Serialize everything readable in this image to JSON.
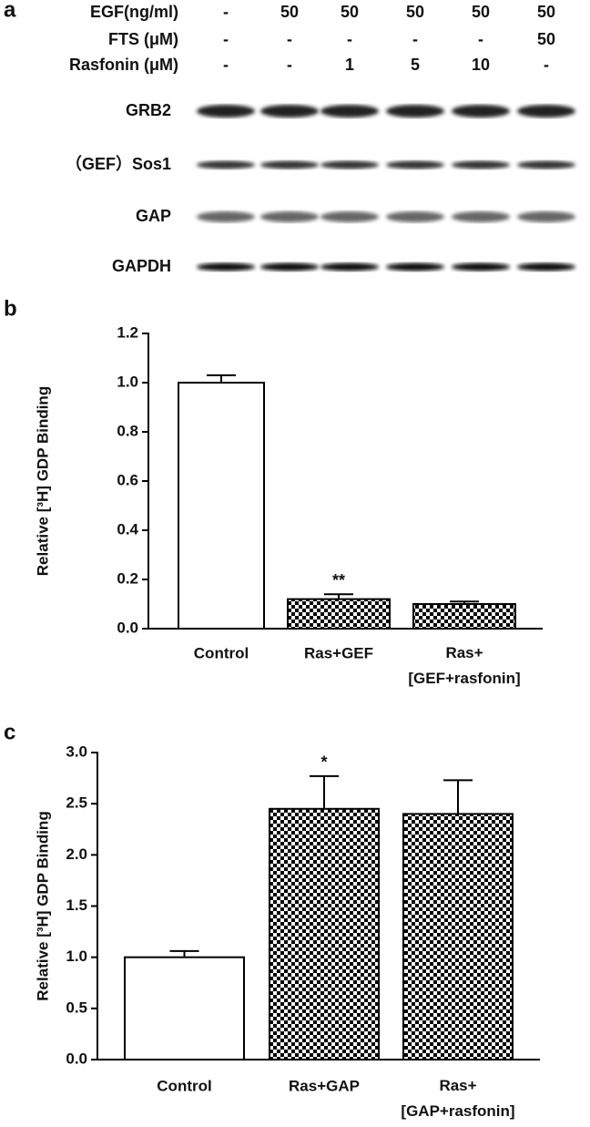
{
  "blot": {
    "panel_label": "a",
    "conditions": [
      {
        "label": "EGF(ng/ml)",
        "values": [
          "-",
          "50",
          "50",
          "50",
          "50",
          "50"
        ]
      },
      {
        "label": "FTS (μM)",
        "values": [
          "-",
          "-",
          "-",
          "-",
          "-",
          "50"
        ]
      },
      {
        "label": "Rasfonin (μM)",
        "values": [
          "-",
          "-",
          "1",
          "5",
          "10",
          "-"
        ]
      }
    ],
    "bands": [
      "GRB2",
      "（GEF）Sos1",
      "GAP",
      "GAPDH"
    ]
  },
  "chart_data": [
    {
      "type": "bar",
      "panel_label": "b",
      "y_label": "Relative [³H] GDP Binding",
      "categories": [
        "Control",
        "Ras+GEF",
        "Ras+\n[GEF+rasfonin]"
      ],
      "values": [
        1.0,
        0.12,
        0.1
      ],
      "errors": [
        0.03,
        0.02,
        0.01
      ],
      "colors": [
        "#ffffff",
        "#000000",
        "#000000"
      ],
      "checkered": [
        false,
        true,
        true
      ],
      "annotations": [
        {
          "category": "Ras+GEF",
          "text": "**"
        }
      ],
      "ylim": [
        0,
        1.2
      ],
      "yticks": [
        {
          "value": 0,
          "label": "0.0"
        },
        {
          "value": 0.2,
          "label": "0.2"
        },
        {
          "value": 0.4,
          "label": "0.4"
        },
        {
          "value": 0.6,
          "label": "0.6"
        },
        {
          "value": 0.8,
          "label": "0.8"
        },
        {
          "value": 1,
          "label": "1.0"
        },
        {
          "value": 1.2,
          "label": "1.2"
        }
      ]
    },
    {
      "type": "bar",
      "panel_label": "c",
      "y_label": "Relative [³H] GDP Binding",
      "categories": [
        "Control",
        "Ras+GAP",
        "Ras+\n[GAP+rasfonin]"
      ],
      "values": [
        1.0,
        2.45,
        2.4
      ],
      "errors": [
        0.06,
        0.32,
        0.33
      ],
      "colors": [
        "#ffffff",
        "#000000",
        "#000000"
      ],
      "checkered": [
        false,
        true,
        true
      ],
      "annotations": [
        {
          "category": "Ras+GAP",
          "text": "*"
        }
      ],
      "ylim": [
        0,
        3
      ],
      "yticks": [
        {
          "value": 0,
          "label": "0.0"
        },
        {
          "value": 0.5,
          "label": "0.5"
        },
        {
          "value": 1,
          "label": "1.0"
        },
        {
          "value": 1.5,
          "label": "1.5"
        },
        {
          "value": 2,
          "label": "2.0"
        },
        {
          "value": 2.5,
          "label": "2.5"
        },
        {
          "value": 3,
          "label": "3.0"
        }
      ]
    }
  ]
}
